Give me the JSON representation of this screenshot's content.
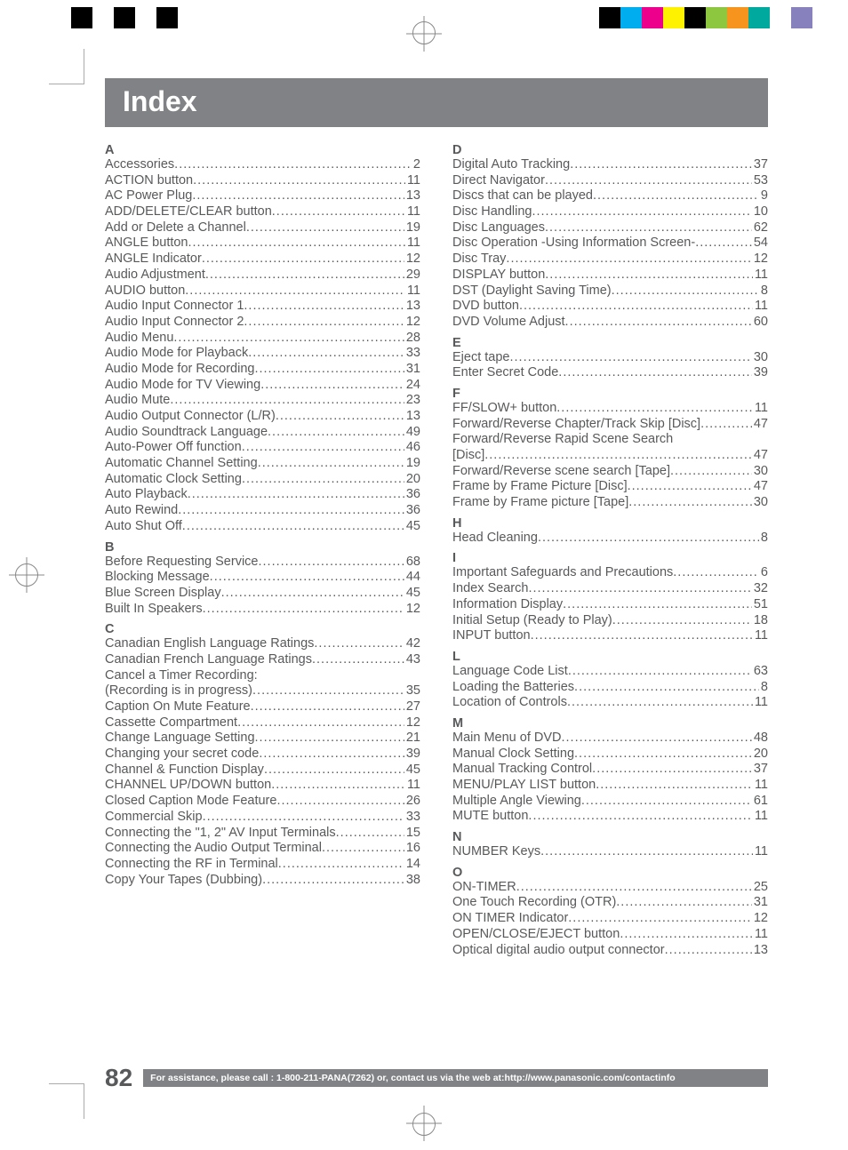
{
  "title": "Index",
  "page_number": "82",
  "footer_text": "For assistance, please call : 1-800-211-PANA(7262) or, contact us via the web at:http://www.panasonic.com/contactinfo",
  "colors": {
    "title_bg": "#808285",
    "title_fg": "#ffffff",
    "text_color": "#58595b",
    "footer_bg": "#808285",
    "footer_fg": "#ffffff",
    "swatch_colors": [
      "#000000",
      "#00aeef",
      "#ec008c",
      "#fff200",
      "#000000",
      "#8dc63f",
      "#f7941d",
      "#00a99d",
      "#ffffff",
      "#8781bd"
    ]
  },
  "left_sections": [
    {
      "letter": "A",
      "entries": [
        {
          "label": "Accessories",
          "page": "2"
        },
        {
          "label": "ACTION button",
          "page": "11"
        },
        {
          "label": "AC Power Plug",
          "page": "13"
        },
        {
          "label": "ADD/DELETE/CLEAR button",
          "page": "11"
        },
        {
          "label": "Add or Delete a Channel",
          "page": "19"
        },
        {
          "label": "ANGLE button",
          "page": "11"
        },
        {
          "label": "ANGLE Indicator",
          "page": "12"
        },
        {
          "label": "Audio Adjustment",
          "page": "29"
        },
        {
          "label": "AUDIO button",
          "page": "11"
        },
        {
          "label": "Audio Input Connector 1",
          "page": "13"
        },
        {
          "label": "Audio Input Connector 2",
          "page": "12"
        },
        {
          "label": "Audio Menu",
          "page": "28"
        },
        {
          "label": "Audio Mode for Playback",
          "page": "33"
        },
        {
          "label": "Audio Mode for Recording",
          "page": "31"
        },
        {
          "label": "Audio Mode for TV Viewing",
          "page": "24"
        },
        {
          "label": "Audio Mute",
          "page": "23"
        },
        {
          "label": "Audio Output Connector (L/R)",
          "page": "13"
        },
        {
          "label": "Audio Soundtrack Language",
          "page": "49"
        },
        {
          "label": "Auto-Power Off function",
          "page": "46"
        },
        {
          "label": "Automatic Channel Setting",
          "page": "19"
        },
        {
          "label": "Automatic Clock Setting",
          "page": "20"
        },
        {
          "label": "Auto Playback",
          "page": "36"
        },
        {
          "label": "Auto Rewind",
          "page": "36"
        },
        {
          "label": "Auto Shut Off",
          "page": "45"
        }
      ]
    },
    {
      "letter": "B",
      "entries": [
        {
          "label": "Before Requesting Service",
          "page": "68"
        },
        {
          "label": "Blocking Message",
          "page": "44"
        },
        {
          "label": "Blue Screen Display",
          "page": "45"
        },
        {
          "label": "Built In Speakers",
          "page": "12"
        }
      ]
    },
    {
      "letter": "C",
      "entries": [
        {
          "label": "Canadian English Language Ratings",
          "page": "42"
        },
        {
          "label": "Canadian French Language Ratings",
          "page": "43"
        },
        {
          "label": "Cancel a Timer Recording:",
          "noline": true
        },
        {
          "label": "(Recording is in progress)",
          "page": "35"
        },
        {
          "label": "Caption On Mute Feature",
          "page": "27"
        },
        {
          "label": "Cassette Compartment",
          "page": "12"
        },
        {
          "label": "Change Language Setting",
          "page": "21"
        },
        {
          "label": "Changing your secret code",
          "page": "39"
        },
        {
          "label": "Channel & Function Display",
          "page": "45"
        },
        {
          "label": "CHANNEL UP/DOWN button",
          "page": "11"
        },
        {
          "label": "Closed Caption Mode Feature",
          "page": "26"
        },
        {
          "label": "Commercial Skip",
          "page": "33"
        },
        {
          "label": "Connecting the \"1, 2\" AV Input Terminals",
          "page": "15"
        },
        {
          "label": "Connecting the Audio Output Terminal",
          "page": "16"
        },
        {
          "label": "Connecting the RF in Terminal",
          "page": "14"
        },
        {
          "label": "Copy Your Tapes (Dubbing)",
          "page": "38"
        }
      ]
    }
  ],
  "right_sections": [
    {
      "letter": "D",
      "entries": [
        {
          "label": "Digital Auto Tracking",
          "page": "37"
        },
        {
          "label": "Direct Navigator",
          "page": "53"
        },
        {
          "label": "Discs that can be played",
          "page": "9"
        },
        {
          "label": "Disc Handling",
          "page": "10"
        },
        {
          "label": "Disc Languages",
          "page": "62"
        },
        {
          "label": "Disc Operation -Using Information Screen-",
          "page": "54"
        },
        {
          "label": "Disc Tray",
          "page": "12"
        },
        {
          "label": "DISPLAY button",
          "page": "11"
        },
        {
          "label": "DST (Daylight Saving Time)",
          "page": "8"
        },
        {
          "label": "DVD button",
          "page": "11"
        },
        {
          "label": "DVD Volume Adjust",
          "page": "60"
        }
      ]
    },
    {
      "letter": "E",
      "entries": [
        {
          "label": "Eject tape",
          "page": "30"
        },
        {
          "label": "Enter Secret Code",
          "page": "39"
        }
      ]
    },
    {
      "letter": "F",
      "entries": [
        {
          "label": "FF/SLOW+ button",
          "page": "11"
        },
        {
          "label": "Forward/Reverse Chapter/Track Skip [Disc]",
          "page": "47"
        },
        {
          "label": "Forward/Reverse Rapid Scene Search",
          "noline": true
        },
        {
          "label": "[Disc]",
          "page": "47"
        },
        {
          "label": "Forward/Reverse scene search [Tape]",
          "page": "30"
        },
        {
          "label": "Frame by Frame Picture [Disc]",
          "page": "47"
        },
        {
          "label": "Frame by Frame picture [Tape]",
          "page": "30"
        }
      ]
    },
    {
      "letter": "H",
      "entries": [
        {
          "label": "Head Cleaning",
          "page": "8"
        }
      ]
    },
    {
      "letter": "I",
      "entries": [
        {
          "label": "Important Safeguards and Precautions",
          "page": "6"
        },
        {
          "label": "Index Search",
          "page": "32"
        },
        {
          "label": "Information Display",
          "page": "51"
        },
        {
          "label": "Initial Setup (Ready to Play)",
          "page": "18"
        },
        {
          "label": "INPUT button",
          "page": "11"
        }
      ]
    },
    {
      "letter": "L",
      "entries": [
        {
          "label": "Language Code List",
          "page": "63"
        },
        {
          "label": "Loading the Batteries",
          "page": "8"
        },
        {
          "label": "Location of Controls",
          "page": "11"
        }
      ]
    },
    {
      "letter": "M",
      "entries": [
        {
          "label": "Main Menu of DVD",
          "page": "48"
        },
        {
          "label": "Manual Clock Setting",
          "page": "20"
        },
        {
          "label": "Manual Tracking Control",
          "page": "37"
        },
        {
          "label": "MENU/PLAY LIST button",
          "page": "11"
        },
        {
          "label": "Multiple Angle Viewing",
          "page": "61"
        },
        {
          "label": "MUTE button",
          "page": "11"
        }
      ]
    },
    {
      "letter": "N",
      "entries": [
        {
          "label": "NUMBER Keys",
          "page": "11"
        }
      ]
    },
    {
      "letter": "O",
      "entries": [
        {
          "label": "ON-TIMER",
          "page": "25"
        },
        {
          "label": "One Touch Recording (OTR)",
          "page": "31"
        },
        {
          "label": "ON TIMER Indicator",
          "page": "12"
        },
        {
          "label": "OPEN/CLOSE/EJECT button",
          "page": "11"
        },
        {
          "label": "Optical digital audio output connector",
          "page": "13"
        }
      ]
    }
  ]
}
